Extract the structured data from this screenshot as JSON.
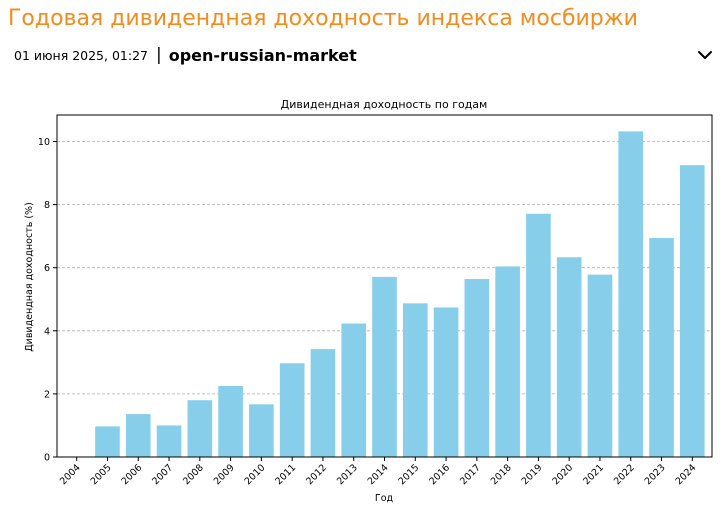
{
  "post": {
    "title": "Годовая дивидендная доходность индекса мосбиржи",
    "date": "01 июня 2025, 01:27",
    "separator": "|",
    "source": "open-russian-market",
    "toggle_icon": "chevron-down-icon"
  },
  "chart_data": {
    "type": "bar",
    "title": "Дивидендная доходность по годам",
    "xlabel": "Год",
    "ylabel": "Дивидендная доходность (%)",
    "categories": [
      "2004",
      "2005",
      "2006",
      "2007",
      "2008",
      "2009",
      "2010",
      "2011",
      "2012",
      "2013",
      "2014",
      "2015",
      "2016",
      "2017",
      "2018",
      "2019",
      "2020",
      "2021",
      "2022",
      "2023",
      "2024"
    ],
    "values": [
      0,
      0.97,
      1.36,
      1.0,
      1.8,
      2.25,
      1.67,
      2.97,
      3.42,
      4.23,
      5.71,
      4.87,
      4.74,
      5.64,
      6.04,
      7.71,
      6.33,
      5.78,
      10.32,
      6.94,
      9.25
    ],
    "yticks": [
      0,
      2,
      4,
      6,
      8,
      10
    ],
    "ylim": [
      0,
      10.84
    ],
    "bar_color": "#87ceeb",
    "grid": "horizontal dashed",
    "legend": "none"
  }
}
